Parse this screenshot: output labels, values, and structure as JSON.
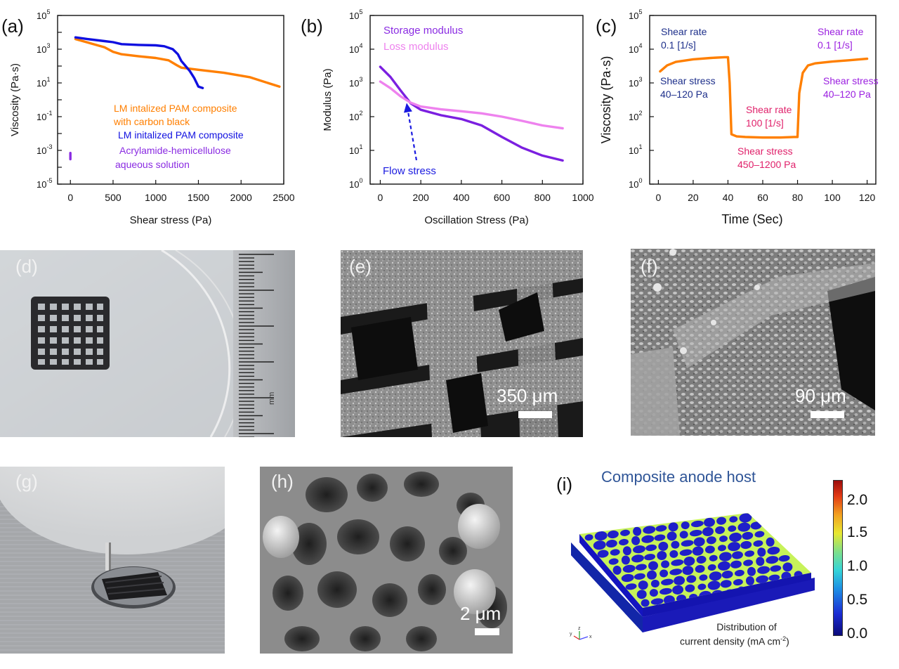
{
  "panels": {
    "a": "(a)",
    "b": "(b)",
    "c": "(c)",
    "d": "(d)",
    "e": "(e)",
    "f": "(f)",
    "g": "(g)",
    "h": "(h)",
    "i": "(i)"
  },
  "chart_data": [
    {
      "id": "a",
      "type": "line",
      "xlabel": "Shear stress (Pa)",
      "ylabel": "Viscosity (Pa·s)",
      "xlim": [
        -150,
        2500
      ],
      "ylim_log10": [
        -5,
        5
      ],
      "x_ticks": [
        "0",
        "500",
        "1000",
        "1500",
        "2000",
        "2500"
      ],
      "y_ticks": [
        "10-5",
        "10-3",
        "10-1",
        "101",
        "103",
        "105"
      ],
      "legend": [
        {
          "text": "LM intalized PAM composite",
          "color": "#ff7f00"
        },
        {
          "text": "with carbon black",
          "color": "#ff7f00"
        },
        {
          "text": "LM initalized PAM composite",
          "color": "#1010e0"
        },
        {
          "text": "Acrylamide-hemicellulose",
          "color": "#8a2be2"
        },
        {
          "text": "aqueous solution",
          "color": "#8a2be2"
        }
      ],
      "series": [
        {
          "color": "#ff7f00",
          "x": [
            60,
            200,
            400,
            500,
            600,
            800,
            1000,
            1150,
            1250,
            1300,
            1500,
            1800,
            2100,
            2450
          ],
          "y": [
            4000,
            2500,
            1300,
            700,
            500,
            380,
            300,
            220,
            110,
            80,
            60,
            40,
            22,
            6
          ]
        },
        {
          "color": "#1010e0",
          "x": [
            60,
            200,
            400,
            500,
            600,
            800,
            1000,
            1100,
            1200,
            1260,
            1300,
            1350,
            1400,
            1450,
            1500,
            1550
          ],
          "y": [
            5000,
            4000,
            3000,
            2600,
            2000,
            1800,
            1700,
            1500,
            1000,
            500,
            200,
            100,
            50,
            20,
            6,
            5
          ]
        },
        {
          "color": "#8a2be2",
          "x": [
            0,
            0
          ],
          "y": [
            0.0003,
            0.0007
          ]
        }
      ]
    },
    {
      "id": "b",
      "type": "line",
      "xlabel": "Oscillation Stress (Pa)",
      "ylabel": "Modulus (Pa)",
      "xlim": [
        -50,
        1000
      ],
      "ylim_log10": [
        0,
        5
      ],
      "x_ticks": [
        "0",
        "200",
        "400",
        "600",
        "800",
        "1000"
      ],
      "y_ticks": [
        "100",
        "101",
        "102",
        "103",
        "104",
        "105"
      ],
      "legend": [
        {
          "text": "Storage modulus",
          "color": "#8a2be2"
        },
        {
          "text": "Loss modulus",
          "color": "#ee82ee"
        }
      ],
      "annotation": {
        "text": "Flow stress",
        "color": "#1a1ae0"
      },
      "series": [
        {
          "name": "Storage modulus",
          "color": "#7b1fe0",
          "x": [
            0,
            50,
            100,
            150,
            200,
            300,
            400,
            500,
            600,
            700,
            800,
            900
          ],
          "y": [
            3000,
            1500,
            600,
            250,
            160,
            110,
            85,
            55,
            25,
            12,
            7,
            5
          ]
        },
        {
          "name": "Loss modulus",
          "color": "#ee82ee",
          "x": [
            0,
            50,
            100,
            150,
            200,
            300,
            400,
            500,
            600,
            700,
            800,
            900
          ],
          "y": [
            1100,
            700,
            400,
            260,
            200,
            165,
            145,
            125,
            100,
            75,
            55,
            45
          ]
        }
      ]
    },
    {
      "id": "c",
      "type": "line",
      "xlabel": "Time (Sec)",
      "ylabel": "Viscosity (Pa·s)",
      "xlim": [
        -5,
        125
      ],
      "ylim_log10": [
        0,
        5
      ],
      "x_ticks": [
        "0",
        "20",
        "40",
        "60",
        "80",
        "100",
        "120"
      ],
      "y_ticks": [
        "100",
        "101",
        "102",
        "103",
        "104",
        "105"
      ],
      "annotations": [
        {
          "lines": [
            "Shear rate",
            "0.1 [1/s]"
          ],
          "color": "#1c2e8a"
        },
        {
          "lines": [
            "Shear stress",
            "40–120 Pa"
          ],
          "color": "#1c2e8a"
        },
        {
          "lines": [
            "Shear rate",
            "100 [1/s]"
          ],
          "color": "#e0206a"
        },
        {
          "lines": [
            "Shear stress",
            "450–1200 Pa"
          ],
          "color": "#e0206a"
        },
        {
          "lines": [
            "Shear rate",
            "0.1 [1/s]"
          ],
          "color": "#9b1fe0"
        },
        {
          "lines": [
            "Shear stress",
            "40–120 Pa"
          ],
          "color": "#9b1fe0"
        }
      ],
      "series": [
        {
          "color": "#ff7f00",
          "x": [
            1,
            5,
            10,
            20,
            30,
            38,
            40,
            41,
            42,
            45,
            50,
            60,
            70,
            78,
            80,
            81,
            83,
            86,
            90,
            100,
            110,
            120
          ],
          "y": [
            2200,
            3300,
            4200,
            5000,
            5500,
            5800,
            5800,
            1000,
            30,
            26,
            25,
            24,
            24,
            25,
            25,
            500,
            2000,
            3300,
            3800,
            4300,
            4700,
            5200
          ]
        }
      ]
    }
  ],
  "scalebars": {
    "e": "350 μm",
    "f": "90 μm",
    "h": "2 μm"
  },
  "photo_d": {
    "ruler_unit": "mm"
  },
  "panel_i": {
    "title": "Composite anode host",
    "caption_line1": "Distribution of",
    "caption_line2": "current density (mA cm",
    "caption_sup": "-2",
    "caption_end": ")",
    "colorbar_ticks": [
      "2.0",
      "1.5",
      "1.0",
      "0.5",
      "0.0"
    ],
    "axes": {
      "x": "x",
      "y": "y",
      "z": "z"
    }
  }
}
